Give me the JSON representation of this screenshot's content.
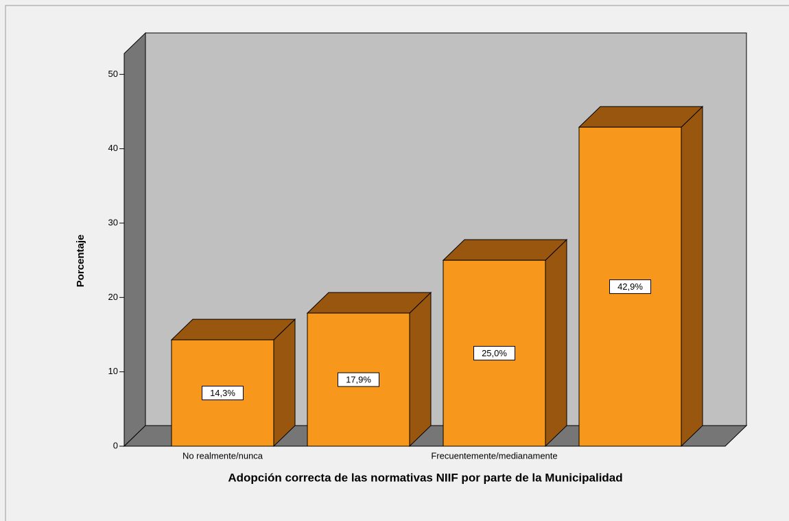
{
  "chart_data": {
    "type": "bar3d",
    "x_label": "Adopción correcta de las normativas NIIF por parte de la Municipalidad",
    "y_label": "Porcentaje",
    "categories": [
      "No realmente/nunca",
      null,
      "Frecuentemente/medianamente",
      null
    ],
    "values": [
      14.3,
      17.9,
      25.0,
      42.9
    ],
    "value_labels": [
      "14,3%",
      "17,9%",
      "25,0%",
      "42,9%"
    ],
    "color": "#f7981d",
    "ylim": [
      0,
      52.8
    ],
    "yticks": [
      0,
      10,
      20,
      30,
      40,
      50
    ]
  }
}
